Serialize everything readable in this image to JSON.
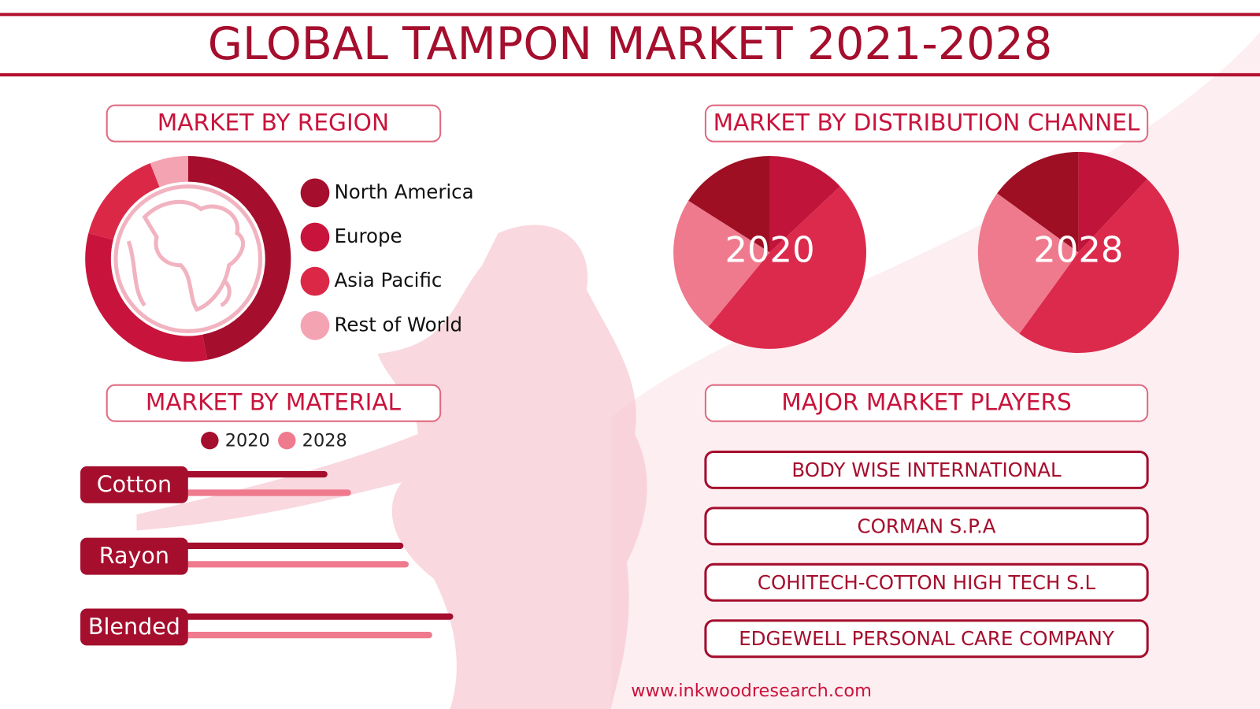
{
  "title": "GLOBAL TAMPON MARKET  2021-2028",
  "chart_data": [
    {
      "type": "donut",
      "title": "MARKET BY REGION",
      "categories": [
        "North America",
        "Europe",
        "Asia Pacific",
        "Rest of World"
      ],
      "values": [
        47,
        32,
        15,
        6
      ],
      "colors": [
        "#a50e2d",
        "#c8143c",
        "#dc2847",
        "#f4a3b3"
      ]
    },
    {
      "type": "pie",
      "title": "MARKET BY DISTRIBUTION CHANNEL",
      "label": "2020",
      "categories": [
        null,
        null,
        null,
        null
      ],
      "values": [
        13,
        48,
        23,
        16
      ],
      "colors": [
        "#c0143a",
        "#dc2a4c",
        "#ef7a8d",
        "#9e0f24"
      ]
    },
    {
      "type": "pie",
      "label": "2028",
      "categories": [
        null,
        null,
        null,
        null
      ],
      "values": [
        12,
        48,
        25,
        15
      ],
      "colors": [
        "#c0143a",
        "#dc2a4c",
        "#ef7a8d",
        "#9e0f24"
      ]
    },
    {
      "type": "hbar",
      "title": "MARKET BY MATERIAL",
      "categories": [
        "Cotton",
        "Rayon",
        "Blended"
      ],
      "series": [
        {
          "name": "2020",
          "color": "#a50e2d",
          "values": [
            52,
            81,
            100
          ]
        },
        {
          "name": "2028",
          "color": "#ef7a8d",
          "values": [
            61,
            83,
            92
          ]
        }
      ],
      "xlim": [
        0,
        100
      ]
    }
  ],
  "players": {
    "title": "MAJOR MARKET PLAYERS",
    "items": [
      "BODY WISE INTERNATIONAL",
      "CORMAN S.P.A",
      "COHITECH-COTTON HIGH TECH S.L",
      "EDGEWELL PERSONAL CARE COMPANY"
    ]
  },
  "website": "www.inkwoodresearch.com"
}
